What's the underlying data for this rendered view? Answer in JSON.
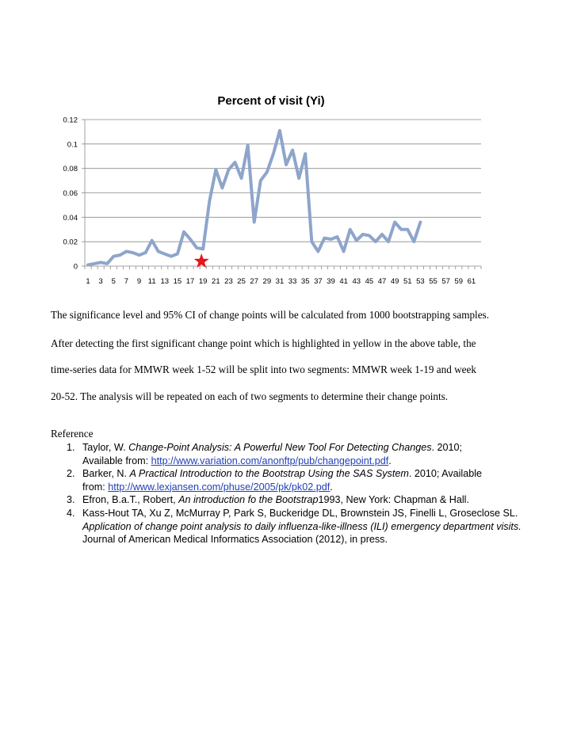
{
  "chart_data": {
    "type": "line",
    "title": "Percent of visit (Yi)",
    "xlabel": "",
    "ylabel": "",
    "x_tick_labels": [
      "1",
      "3",
      "5",
      "7",
      "9",
      "11",
      "13",
      "15",
      "17",
      "19",
      "21",
      "23",
      "25",
      "27",
      "29",
      "31",
      "33",
      "35",
      "37",
      "39",
      "41",
      "43",
      "45",
      "47",
      "49",
      "51",
      "53",
      "55",
      "57",
      "59",
      "61"
    ],
    "y_tick_labels": [
      "0",
      "0.02",
      "0.04",
      "0.06",
      "0.08",
      "0.1",
      "0.12"
    ],
    "ylim": [
      0,
      0.12
    ],
    "xlim": [
      1,
      62
    ],
    "grid": true,
    "legend": "none",
    "series": [
      {
        "color": "#8ea5cb",
        "x": [
          1,
          2,
          3,
          4,
          5,
          6,
          7,
          8,
          9,
          10,
          11,
          12,
          13,
          14,
          15,
          16,
          17,
          18,
          19,
          20,
          21,
          22,
          23,
          24,
          25,
          26,
          27,
          28,
          29,
          30,
          31,
          32,
          33,
          34,
          35,
          36,
          37,
          38,
          39,
          40,
          41,
          42,
          43,
          44,
          45,
          46,
          47,
          48,
          49,
          50,
          51,
          52,
          53
        ],
        "values": [
          0.001,
          0.002,
          0.003,
          0.002,
          0.008,
          0.009,
          0.012,
          0.011,
          0.009,
          0.011,
          0.021,
          0.012,
          0.01,
          0.008,
          0.01,
          0.028,
          0.022,
          0.015,
          0.014,
          0.053,
          0.079,
          0.064,
          0.079,
          0.085,
          0.072,
          0.099,
          0.036,
          0.07,
          0.077,
          0.092,
          0.111,
          0.083,
          0.095,
          0.072,
          0.092,
          0.02,
          0.012,
          0.023,
          0.022,
          0.024,
          0.012,
          0.03,
          0.021,
          0.026,
          0.025,
          0.02,
          0.026,
          0.02,
          0.036,
          0.03,
          0.03,
          0.02,
          0.036
        ]
      }
    ],
    "marker": {
      "x": 19,
      "y": 0,
      "symbol": "star",
      "color": "#e8141b"
    }
  },
  "body": {
    "p1": "The significance level and 95% CI of change points will be calculated from 1000 bootstrapping samples.",
    "p2": "After detecting the first significant change point which is highlighted in yellow in the above table, the",
    "p3": "time-series data for MMWR week 1-52 will be split into two segments: MMWR week 1-19 and week",
    "p4": "20-52. The analysis will be repeated on each of two segments to determine their change points."
  },
  "references": {
    "heading": "Reference",
    "items": [
      {
        "num": "1.",
        "authors": "Taylor, W. ",
        "title": "Change-Point Analysis: A Powerful New Tool For Detecting Changes",
        "after_title": ". 2010;",
        "avail": "Available from: ",
        "link": "http://www.variation.com/anonftp/pub/changepoint.pdf",
        "end": "."
      },
      {
        "num": "2.",
        "authors": "Barker, N. ",
        "title": "A Practical Introduction to the Bootstrap Using the SAS System",
        "after_title": ". 2010; Available",
        "avail": "from: ",
        "link": "http://www.lexjansen.com/phuse/2005/pk/pk02.pdf",
        "end": "."
      },
      {
        "num": "3.",
        "authors": "Efron, B.a.T., Robert, ",
        "title": "An introduction fo the Bootstrap",
        "after_title": "1993, New York: Chapman & Hall."
      },
      {
        "num": "4.",
        "authors": "Kass-Hout TA, Xu Z, McMurray P, Park S, Buckeridge DL, Brownstein JS, Finelli L, Groseclose SL. ",
        "title": "Application of change point analysis to daily influenza-like-illness (ILI) emergency department visits.",
        "after_title": " Journal of American Medical Informatics Association (2012), in press."
      }
    ]
  }
}
